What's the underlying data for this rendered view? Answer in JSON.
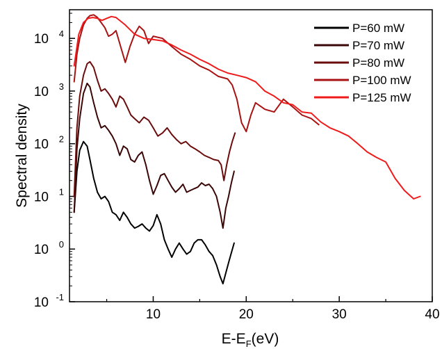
{
  "chart_data": {
    "type": "line",
    "title": "",
    "xlabel": "E-E",
    "xlabel_sub": "F",
    "xlabel_unit": "(eV)",
    "ylabel": "Spectral density",
    "xlim": [
      1,
      40
    ],
    "ylim": [
      0.1,
      35000
    ],
    "y_scale": "log",
    "grid": false,
    "legend_position": "top-right",
    "x_ticks": [
      10,
      20,
      30,
      40
    ],
    "y_ticks": [
      {
        "value": 0.1,
        "base": "10",
        "exp": "-1"
      },
      {
        "value": 1,
        "base": "10",
        "exp": "0"
      },
      {
        "value": 10,
        "base": "10",
        "exp": "1"
      },
      {
        "value": 100,
        "base": "10",
        "exp": "2"
      },
      {
        "value": 1000,
        "base": "10",
        "exp": "3"
      },
      {
        "value": 10000,
        "base": "10",
        "exp": "4"
      }
    ],
    "series": [
      {
        "name": "P=60 mW",
        "color": "#000000",
        "x": [
          1.5,
          1.8,
          2.1,
          2.5,
          2.9,
          3.2,
          3.6,
          4.0,
          4.4,
          4.8,
          5.2,
          5.6,
          6.0,
          6.4,
          6.8,
          7.2,
          7.6,
          8.0,
          8.4,
          8.8,
          9.2,
          9.6,
          10.0,
          10.4,
          10.8,
          11.2,
          11.6,
          12.0,
          12.4,
          12.8,
          13.2,
          13.6,
          14.0,
          14.4,
          14.8,
          15.2,
          15.6,
          16.0,
          16.4,
          16.8,
          17.2,
          17.5,
          17.8,
          18.1,
          18.4,
          18.7
        ],
        "y": [
          5,
          30,
          75,
          110,
          90,
          50,
          22,
          12,
          9,
          10,
          8,
          5,
          4.5,
          3.5,
          5,
          4,
          3,
          2.5,
          2.7,
          3,
          2.5,
          2.2,
          2.8,
          4.5,
          3,
          1.5,
          1.0,
          0.7,
          1.0,
          1.3,
          1.0,
          0.8,
          0.9,
          1.3,
          1.5,
          1.5,
          1.2,
          0.9,
          0.75,
          0.5,
          0.3,
          0.22,
          0.35,
          0.55,
          0.85,
          1.3
        ]
      },
      {
        "name": "P=70 mW",
        "color": "#3a0606",
        "x": [
          1.5,
          1.8,
          2.1,
          2.5,
          2.9,
          3.2,
          3.6,
          4.0,
          4.4,
          4.8,
          5.2,
          5.6,
          6.0,
          6.4,
          6.8,
          7.2,
          7.6,
          8.0,
          8.4,
          8.8,
          9.2,
          9.6,
          10.0,
          10.4,
          10.8,
          11.2,
          11.6,
          12.0,
          12.4,
          12.8,
          13.2,
          13.6,
          14.0,
          14.4,
          14.8,
          15.2,
          15.6,
          16.0,
          16.4,
          16.8,
          17.2,
          17.5,
          17.8,
          18.1,
          18.4,
          18.7
        ],
        "y": [
          5,
          80,
          300,
          900,
          1400,
          1200,
          600,
          320,
          200,
          220,
          180,
          140,
          100,
          60,
          90,
          80,
          50,
          45,
          60,
          70,
          40,
          20,
          11,
          16,
          25,
          27,
          20,
          15,
          12,
          14,
          17,
          12,
          13,
          14,
          15,
          18,
          16,
          17,
          14,
          10,
          5,
          2.5,
          6,
          10,
          18,
          30
        ]
      },
      {
        "name": "P=80 mW",
        "color": "#6b0c0c",
        "x": [
          1.5,
          1.8,
          2.1,
          2.5,
          2.9,
          3.2,
          3.6,
          4.0,
          4.4,
          4.8,
          5.2,
          5.6,
          6.0,
          6.4,
          6.8,
          7.2,
          7.6,
          8.0,
          8.5,
          9.0,
          9.5,
          10.0,
          10.5,
          11.0,
          11.5,
          12.0,
          12.5,
          13.0,
          13.5,
          14.0,
          14.5,
          15.0,
          15.5,
          16.0,
          16.5,
          17.0,
          17.3,
          17.6,
          17.9,
          18.2,
          18.5,
          18.8
        ],
        "y": [
          10,
          200,
          800,
          2000,
          3300,
          3600,
          2800,
          1600,
          1000,
          1100,
          900,
          700,
          500,
          800,
          700,
          500,
          350,
          300,
          250,
          320,
          280,
          200,
          140,
          160,
          200,
          150,
          120,
          100,
          110,
          90,
          80,
          70,
          60,
          55,
          50,
          48,
          40,
          20,
          40,
          70,
          110,
          160
        ]
      },
      {
        "name": "P=100 mW",
        "color": "#a81212",
        "x": [
          1.5,
          1.8,
          2.1,
          2.5,
          2.9,
          3.2,
          3.6,
          4.0,
          4.4,
          4.8,
          5.2,
          5.6,
          6.0,
          6.5,
          7.0,
          7.5,
          8.0,
          8.5,
          9.0,
          9.5,
          10.0,
          11.0,
          12.0,
          13.0,
          14.0,
          15.0,
          16.0,
          17.0,
          18.0,
          18.5,
          19.0,
          19.5,
          20.0,
          20.5,
          21.0,
          22.0,
          23.0,
          24.0,
          25.0,
          26.0,
          27.0,
          27.8
        ],
        "y": [
          1500,
          5000,
          10000,
          18000,
          24000,
          27000,
          28000,
          25000,
          20000,
          16000,
          11000,
          12000,
          14000,
          7000,
          3500,
          7000,
          12000,
          17000,
          14000,
          8000,
          11000,
          10000,
          7000,
          5000,
          4000,
          3000,
          2500,
          1900,
          1700,
          1300,
          700,
          250,
          170,
          350,
          600,
          450,
          400,
          700,
          500,
          350,
          300,
          230
        ]
      },
      {
        "name": "P=125 mW",
        "color": "#ef1b1b",
        "x": [
          1.5,
          2.0,
          2.5,
          3.0,
          3.5,
          4.0,
          4.5,
          5.0,
          5.5,
          6.0,
          7.0,
          8.0,
          9.0,
          10.0,
          11.0,
          12.0,
          13.0,
          14.0,
          15.0,
          16.0,
          17.0,
          18.0,
          19.0,
          20.0,
          21.0,
          22.0,
          23.0,
          24.0,
          25.0,
          26.0,
          27.0,
          28.0,
          29.0,
          30.0,
          31.0,
          32.0,
          33.0,
          34.0,
          35.0,
          36.0,
          37.0,
          38.0,
          38.7
        ],
        "y": [
          3000,
          12000,
          20000,
          24000,
          25000,
          24000,
          22000,
          24000,
          26000,
          25000,
          18000,
          12000,
          10000,
          9500,
          9000,
          7500,
          6000,
          5000,
          4000,
          3300,
          2600,
          2200,
          2000,
          1800,
          1500,
          1000,
          800,
          600,
          550,
          400,
          380,
          260,
          200,
          170,
          140,
          100,
          70,
          55,
          45,
          22,
          13,
          9,
          10
        ]
      }
    ]
  }
}
